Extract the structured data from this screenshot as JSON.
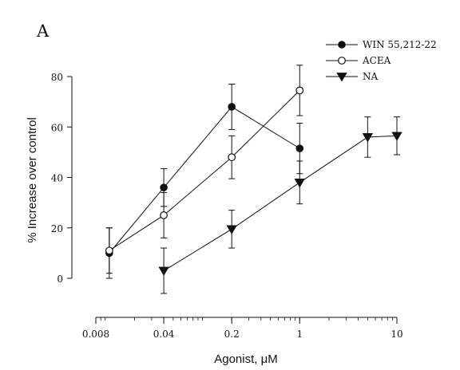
{
  "chart_data": {
    "type": "line",
    "panel_label": "A",
    "xlabel": "Agonist, μM",
    "ylabel": "% Increase over control",
    "x_scale": "log",
    "xlim": [
      0.008,
      10
    ],
    "ylim": [
      0,
      80
    ],
    "x_ticks": [
      0.008,
      0.04,
      0.2,
      1,
      10
    ],
    "x_tick_labels": [
      "0.008",
      "0.04",
      "0.2",
      "1",
      "10"
    ],
    "y_ticks": [
      0,
      20,
      40,
      60,
      80
    ],
    "y_tick_labels": [
      "0",
      "20",
      "40",
      "60",
      "80"
    ],
    "grid": false,
    "legend_position": "top-right",
    "series": [
      {
        "name": "WIN 55,212-22",
        "marker": "filled-circle",
        "x": [
          0.011,
          0.04,
          0.2,
          1
        ],
        "y": [
          10,
          36,
          68,
          51.5
        ],
        "error": [
          10,
          7.5,
          9,
          10
        ]
      },
      {
        "name": "ACEA",
        "marker": "open-circle",
        "x": [
          0.011,
          0.04,
          0.2,
          1
        ],
        "y": [
          11,
          25,
          48,
          74.5
        ],
        "error": [
          9,
          9,
          8.5,
          10
        ]
      },
      {
        "name": "NA",
        "marker": "filled-triangle-down",
        "x": [
          0.04,
          0.2,
          1,
          5,
          10
        ],
        "y": [
          3,
          19.5,
          38,
          56,
          56.5
        ],
        "error": [
          9,
          7.5,
          8.5,
          8,
          7.5
        ]
      }
    ]
  }
}
